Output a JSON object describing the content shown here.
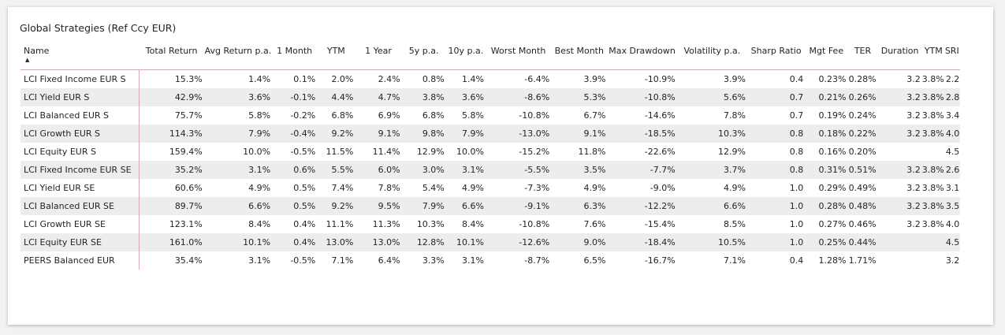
{
  "title": "Global Strategies (Ref Ccy EUR)",
  "columns": [
    "Name",
    "Total Return",
    "Avg Return p.a.",
    "1 Month",
    "YTM",
    "1 Year",
    "5y p.a.",
    "10y p.a.",
    "Worst Month",
    "Best Month",
    "Max Drawdown",
    "Volatility p.a.",
    "Sharp Ratio",
    "Mgt Fee",
    "TER",
    "Duration",
    "YTM",
    "SRI"
  ],
  "sort": {
    "column": "Name",
    "direction": "ascending",
    "icon": "sort-ascending-triangle"
  },
  "rows": [
    [
      "LCI Fixed Income EUR S",
      "15.3%",
      "1.4%",
      "0.1%",
      "2.0%",
      "2.4%",
      "0.8%",
      "1.4%",
      "-6.4%",
      "3.9%",
      "-10.9%",
      "3.9%",
      "0.4",
      "0.23%",
      "0.28%",
      "3.2",
      "3.8%",
      "2.2"
    ],
    [
      "LCI Yield EUR S",
      "42.9%",
      "3.6%",
      "-0.1%",
      "4.4%",
      "4.7%",
      "3.8%",
      "3.6%",
      "-8.6%",
      "5.3%",
      "-10.8%",
      "5.6%",
      "0.7",
      "0.21%",
      "0.26%",
      "3.2",
      "3.8%",
      "2.8"
    ],
    [
      "LCI Balanced EUR S",
      "75.7%",
      "5.8%",
      "-0.2%",
      "6.8%",
      "6.9%",
      "6.8%",
      "5.8%",
      "-10.8%",
      "6.7%",
      "-14.6%",
      "7.8%",
      "0.7",
      "0.19%",
      "0.24%",
      "3.2",
      "3.8%",
      "3.4"
    ],
    [
      "LCI Growth EUR S",
      "114.3%",
      "7.9%",
      "-0.4%",
      "9.2%",
      "9.1%",
      "9.8%",
      "7.9%",
      "-13.0%",
      "9.1%",
      "-18.5%",
      "10.3%",
      "0.8",
      "0.18%",
      "0.22%",
      "3.2",
      "3.8%",
      "4.0"
    ],
    [
      "LCI Equity EUR S",
      "159.4%",
      "10.0%",
      "-0.5%",
      "11.5%",
      "11.4%",
      "12.9%",
      "10.0%",
      "-15.2%",
      "11.8%",
      "-22.6%",
      "12.9%",
      "0.8",
      "0.16%",
      "0.20%",
      "",
      "",
      "4.5"
    ],
    [
      "LCI Fixed Income EUR SE",
      "35.2%",
      "3.1%",
      "0.6%",
      "5.5%",
      "6.0%",
      "3.0%",
      "3.1%",
      "-5.5%",
      "3.5%",
      "-7.7%",
      "3.7%",
      "0.8",
      "0.31%",
      "0.51%",
      "3.2",
      "3.8%",
      "2.6"
    ],
    [
      "LCI Yield EUR SE",
      "60.6%",
      "4.9%",
      "0.5%",
      "7.4%",
      "7.8%",
      "5.4%",
      "4.9%",
      "-7.3%",
      "4.9%",
      "-9.0%",
      "4.9%",
      "1.0",
      "0.29%",
      "0.49%",
      "3.2",
      "3.8%",
      "3.1"
    ],
    [
      "LCI Balanced EUR SE",
      "89.7%",
      "6.6%",
      "0.5%",
      "9.2%",
      "9.5%",
      "7.9%",
      "6.6%",
      "-9.1%",
      "6.3%",
      "-12.2%",
      "6.6%",
      "1.0",
      "0.28%",
      "0.48%",
      "3.2",
      "3.8%",
      "3.5"
    ],
    [
      "LCI Growth EUR SE",
      "123.1%",
      "8.4%",
      "0.4%",
      "11.1%",
      "11.3%",
      "10.3%",
      "8.4%",
      "-10.8%",
      "7.6%",
      "-15.4%",
      "8.5%",
      "1.0",
      "0.27%",
      "0.46%",
      "3.2",
      "3.8%",
      "4.0"
    ],
    [
      "LCI Equity EUR SE",
      "161.0%",
      "10.1%",
      "0.4%",
      "13.0%",
      "13.0%",
      "12.8%",
      "10.1%",
      "-12.6%",
      "9.0%",
      "-18.4%",
      "10.5%",
      "1.0",
      "0.25%",
      "0.44%",
      "",
      "",
      "4.5"
    ],
    [
      "PEERS Balanced EUR",
      "35.4%",
      "3.1%",
      "-0.5%",
      "7.1%",
      "6.4%",
      "3.3%",
      "3.1%",
      "-8.7%",
      "6.5%",
      "-16.7%",
      "7.1%",
      "0.4",
      "1.28%",
      "1.71%",
      "",
      "",
      "3.2"
    ]
  ]
}
